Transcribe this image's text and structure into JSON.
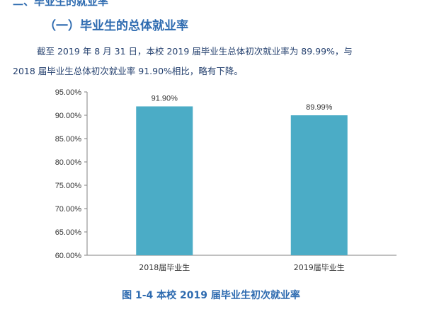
{
  "doc": {
    "top_cut_heading": "二、毕业生的就业率",
    "section_heading": "（一）毕业生的总体就业率",
    "paragraph_line1": "截至 2019 年 8 月 31 日，本校 2019 届毕业生总体初次就业率为 89.99%，与",
    "paragraph_line2": "2018 届毕业生总体初次就业率 91.90%相比，略有下降。",
    "caption": "图 1-4  本校 2019 届毕业生初次就业率"
  },
  "chart_data": {
    "type": "bar",
    "title": "",
    "xlabel": "",
    "ylabel": "",
    "categories": [
      "2018届毕业生",
      "2019届毕业生"
    ],
    "values": [
      91.9,
      89.99
    ],
    "data_labels": [
      "91.90%",
      "89.99%"
    ],
    "ylim": [
      60,
      95
    ],
    "y_ticks": [
      60,
      65,
      70,
      75,
      80,
      85,
      90,
      95
    ],
    "y_tick_labels": [
      "60.00%",
      "65.00%",
      "70.00%",
      "75.00%",
      "80.00%",
      "85.00%",
      "90.00%",
      "95.00%"
    ],
    "grid": false,
    "legend": "none",
    "bar_color": "#4bacc6"
  }
}
